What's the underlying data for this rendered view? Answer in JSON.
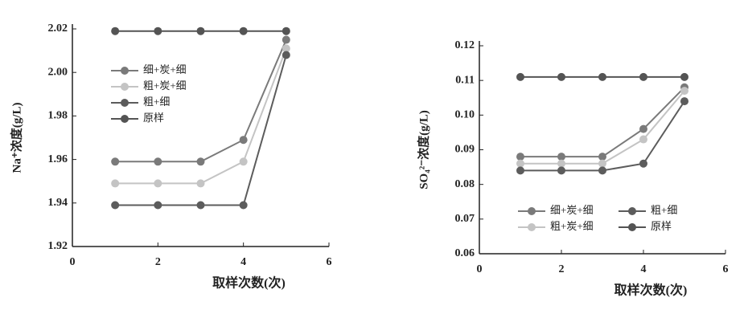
{
  "chart_data": [
    {
      "type": "line",
      "x": [
        1,
        2,
        3,
        4,
        5
      ],
      "xlim": [
        0,
        6
      ],
      "xticks": [
        0,
        2,
        4,
        6
      ],
      "ylim": [
        1.92,
        2.02
      ],
      "yticks": [
        1.92,
        1.94,
        1.96,
        1.98,
        {
          "value": 2,
          "label": "2.00"
        },
        2.02
      ],
      "xlabel": "取样次数(次)",
      "ylabel": "Na⁺浓度(g/L)",
      "legend": "center left",
      "series": [
        {
          "name": "细+炭+细",
          "color": "#7a7a7a",
          "values": [
            1.959,
            1.959,
            1.959,
            1.969,
            2.015
          ]
        },
        {
          "name": "粗+炭+细",
          "color": "#c4c4c4",
          "values": [
            1.949,
            1.949,
            1.949,
            1.959,
            2.011
          ]
        },
        {
          "name": "粗+细",
          "color": "#5c5c5c",
          "values": [
            1.939,
            1.939,
            1.939,
            1.939,
            2.008
          ]
        },
        {
          "name": "原样",
          "color": "#545454",
          "values": [
            2.019,
            2.019,
            2.019,
            2.019,
            2.019
          ]
        }
      ]
    },
    {
      "type": "line",
      "x": [
        1,
        2,
        3,
        4,
        5
      ],
      "xlim": [
        0,
        6
      ],
      "xticks": [
        0,
        2,
        4,
        6
      ],
      "ylim": [
        0.06,
        0.12
      ],
      "yticks": [
        0.06,
        0.07,
        0.08,
        0.09,
        {
          "value": 0.1,
          "label": "0.10"
        },
        0.11,
        0.12
      ],
      "xlabel": "取样次数(次)",
      "ylabel": "SO₄²⁻浓度(g/L)",
      "legend": "lower left",
      "series": [
        {
          "name": "细+炭+细",
          "color": "#7a7a7a",
          "values": [
            0.088,
            0.088,
            0.088,
            0.096,
            0.108
          ]
        },
        {
          "name": "粗+炭+细",
          "color": "#c4c4c4",
          "values": [
            0.086,
            0.086,
            0.086,
            0.093,
            0.107
          ]
        },
        {
          "name": "粗+细",
          "color": "#5c5c5c",
          "values": [
            0.084,
            0.084,
            0.084,
            0.086,
            0.104
          ]
        },
        {
          "name": "原样",
          "color": "#545454",
          "values": [
            0.111,
            0.111,
            0.111,
            0.111,
            0.111
          ]
        }
      ]
    }
  ]
}
